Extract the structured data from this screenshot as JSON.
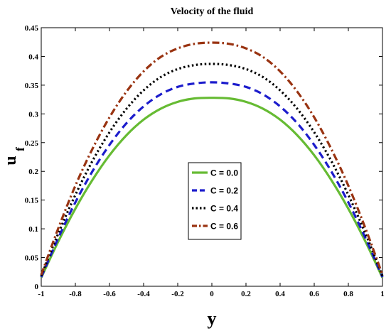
{
  "chart_data": {
    "type": "line",
    "title": "Velocity of the fluid",
    "xlabel": "y",
    "ylabel_main": "u",
    "ylabel_sub": "f",
    "xlim": [
      -1,
      1
    ],
    "ylim": [
      0,
      0.45
    ],
    "xticks": [
      -1,
      -0.8,
      -0.6,
      -0.4,
      -0.2,
      0,
      0.2,
      0.4,
      0.6,
      0.8,
      1
    ],
    "xtick_labels": [
      "-1",
      "-0.8",
      "-0.6",
      "-0.4",
      "-0.2",
      "0",
      "0.2",
      "0.4",
      "0.6",
      "0.8",
      "1"
    ],
    "yticks": [
      0,
      0.05,
      0.1,
      0.15,
      0.2,
      0.25,
      0.3,
      0.35,
      0.4,
      0.45
    ],
    "ytick_labels": [
      "0",
      "0.05",
      "0.1",
      "0.15",
      "0.2",
      "0.25",
      "0.3",
      "0.35",
      "0.4",
      "0.45"
    ],
    "grid": false,
    "legend_position": "center",
    "x": [
      -1,
      -0.9,
      -0.8,
      -0.7,
      -0.6,
      -0.5,
      -0.4,
      -0.3,
      -0.2,
      -0.1,
      0,
      0.1,
      0.2,
      0.3,
      0.4,
      0.5,
      0.6,
      0.7,
      0.8,
      0.9,
      1
    ],
    "series": [
      {
        "name": "C = 0.0",
        "color": "#66bb33",
        "style": "solid",
        "values": [
          0.015,
          0.078,
          0.135,
          0.185,
          0.228,
          0.263,
          0.29,
          0.309,
          0.321,
          0.327,
          0.328,
          0.327,
          0.321,
          0.309,
          0.29,
          0.263,
          0.228,
          0.185,
          0.135,
          0.078,
          0.015
        ]
      },
      {
        "name": "C = 0.2",
        "color": "#1c1ccc",
        "style": "dashed",
        "values": [
          0.016,
          0.084,
          0.146,
          0.2,
          0.246,
          0.284,
          0.313,
          0.334,
          0.347,
          0.353,
          0.355,
          0.353,
          0.347,
          0.334,
          0.313,
          0.284,
          0.246,
          0.2,
          0.146,
          0.084,
          0.016
        ]
      },
      {
        "name": "C = 0.4",
        "color": "#000000",
        "style": "dotted",
        "values": [
          0.018,
          0.092,
          0.159,
          0.218,
          0.268,
          0.309,
          0.341,
          0.364,
          0.378,
          0.385,
          0.387,
          0.385,
          0.378,
          0.364,
          0.341,
          0.309,
          0.268,
          0.218,
          0.159,
          0.092,
          0.018
        ]
      },
      {
        "name": "C = 0.6",
        "color": "#993311",
        "style": "dashdot",
        "values": [
          0.02,
          0.101,
          0.175,
          0.239,
          0.294,
          0.339,
          0.374,
          0.399,
          0.414,
          0.422,
          0.424,
          0.422,
          0.414,
          0.399,
          0.374,
          0.339,
          0.294,
          0.239,
          0.175,
          0.101,
          0.02
        ]
      }
    ]
  }
}
